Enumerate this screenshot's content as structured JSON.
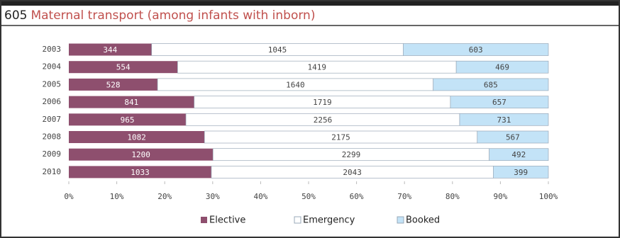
{
  "chart_data": {
    "type": "bar",
    "orientation": "horizontal",
    "stacked": "percent",
    "number": "605",
    "title": "Maternal transport (among infants with inborn)",
    "categories": [
      "2003",
      "2004",
      "2005",
      "2006",
      "2007",
      "2008",
      "2009",
      "2010"
    ],
    "series": [
      {
        "name": "Elective",
        "color": "#8e4f6e",
        "values": [
          344,
          554,
          528,
          841,
          965,
          1082,
          1200,
          1033
        ]
      },
      {
        "name": "Emergency",
        "color": "#ffffff",
        "values": [
          1045,
          1419,
          1640,
          1719,
          2256,
          2175,
          2299,
          2043
        ]
      },
      {
        "name": "Booked",
        "color": "#c3e3f7",
        "values": [
          603,
          469,
          685,
          657,
          731,
          567,
          492,
          399
        ]
      }
    ],
    "xlim": [
      0,
      100
    ],
    "xticks": [
      {
        "value": 0,
        "label": "0%"
      },
      {
        "value": 10,
        "label": "10%"
      },
      {
        "value": 20,
        "label": "20%"
      },
      {
        "value": 30,
        "label": "30%"
      },
      {
        "value": 40,
        "label": "40%"
      },
      {
        "value": 50,
        "label": "50%"
      },
      {
        "value": 60,
        "label": "60%"
      },
      {
        "value": 70,
        "label": "70%"
      },
      {
        "value": 80,
        "label": "80%"
      },
      {
        "value": 90,
        "label": "90%"
      },
      {
        "value": 100,
        "label": "100%"
      }
    ],
    "legend": "bottom"
  }
}
